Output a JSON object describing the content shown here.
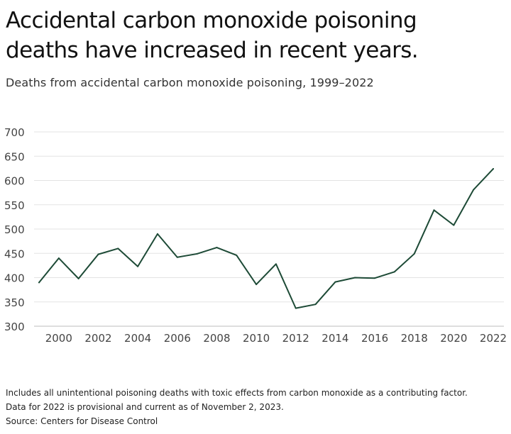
{
  "title_line1": "Accidental carbon monoxide poisoning",
  "title_line2": "deaths have increased in recent years.",
  "subtitle": "Deaths from accidental carbon monoxide poisoning, 1999–2022",
  "footnotes": [
    "Includes all unintentional poisoning deaths with toxic effects from carbon monoxide as a contributing factor.",
    "Data for 2022 is provisional and current as of November 2, 2023.",
    "Source: Centers for Disease Control"
  ],
  "colors": {
    "line": "#1d4a36",
    "grid": "#e3e3e3",
    "baseline": "#bdbdbd",
    "tick_text": "#444444"
  },
  "chart_data": {
    "type": "line",
    "x": [
      1999,
      2000,
      2001,
      2002,
      2003,
      2004,
      2005,
      2006,
      2007,
      2008,
      2009,
      2010,
      2011,
      2012,
      2013,
      2014,
      2015,
      2016,
      2017,
      2018,
      2019,
      2020,
      2021,
      2022
    ],
    "series": [
      {
        "values": [
          390,
          440,
          398,
          448,
          460,
          423,
          490,
          442,
          449,
          462,
          446,
          386,
          428,
          337,
          345,
          391,
          400,
          399,
          412,
          449,
          539,
          508,
          581,
          624
        ]
      }
    ],
    "xticks": [
      2000,
      2002,
      2004,
      2006,
      2008,
      2010,
      2012,
      2014,
      2016,
      2018,
      2020,
      2022
    ],
    "yticks": [
      300,
      350,
      400,
      450,
      500,
      550,
      600,
      650,
      700
    ],
    "xlim": [
      1999,
      2022
    ],
    "ylim": [
      300,
      700
    ],
    "grid": true,
    "xlabel": "",
    "ylabel": ""
  }
}
